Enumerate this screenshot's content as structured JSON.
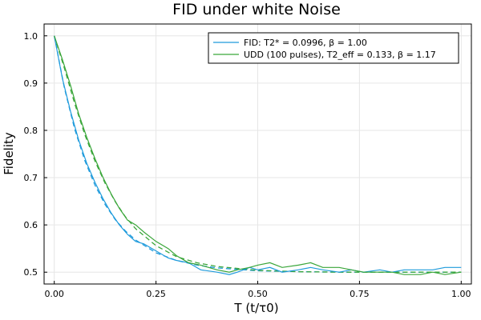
{
  "chart_data": {
    "type": "line",
    "title": "FID under white Noise",
    "xlabel": "T (t/τ0)",
    "ylabel": "Fidelity",
    "xlim": [
      -0.025,
      1.025
    ],
    "ylim": [
      0.475,
      1.025
    ],
    "xticks": [
      0.0,
      0.25,
      0.5,
      0.75,
      1.0
    ],
    "xtick_labels": [
      "0.00",
      "0.25",
      "0.50",
      "0.75",
      "1.00"
    ],
    "yticks": [
      0.5,
      0.6,
      0.7,
      0.8,
      0.9,
      1.0
    ],
    "ytick_labels": [
      "0.5",
      "0.6",
      "0.7",
      "0.8",
      "0.9",
      "1.0"
    ],
    "grid": true,
    "legend_position": "top-right",
    "series": [
      {
        "name": "FID: T2* = 0.0996, β = 1.00",
        "color": "#1f9bdc",
        "style": "solid",
        "x": [
          0.0,
          0.02,
          0.04,
          0.06,
          0.08,
          0.1,
          0.12,
          0.14,
          0.16,
          0.18,
          0.2,
          0.22,
          0.25,
          0.28,
          0.3,
          0.33,
          0.36,
          0.4,
          0.43,
          0.45,
          0.48,
          0.5,
          0.53,
          0.56,
          0.6,
          0.63,
          0.66,
          0.7,
          0.73,
          0.76,
          0.8,
          0.83,
          0.86,
          0.9,
          0.93,
          0.96,
          1.0
        ],
        "y": [
          1.0,
          0.91,
          0.84,
          0.78,
          0.73,
          0.69,
          0.655,
          0.625,
          0.6,
          0.58,
          0.565,
          0.56,
          0.545,
          0.53,
          0.525,
          0.52,
          0.505,
          0.5,
          0.495,
          0.5,
          0.51,
          0.505,
          0.51,
          0.5,
          0.505,
          0.51,
          0.505,
          0.5,
          0.505,
          0.5,
          0.505,
          0.5,
          0.505,
          0.505,
          0.505,
          0.51,
          0.51
        ]
      },
      {
        "name": "UDD (100 pulses), T2_eff = 0.133, β = 1.17",
        "color": "#3aa63a",
        "style": "solid",
        "x": [
          0.0,
          0.02,
          0.04,
          0.06,
          0.08,
          0.1,
          0.12,
          0.14,
          0.16,
          0.18,
          0.2,
          0.22,
          0.25,
          0.28,
          0.3,
          0.33,
          0.36,
          0.4,
          0.43,
          0.45,
          0.48,
          0.5,
          0.53,
          0.56,
          0.6,
          0.63,
          0.66,
          0.7,
          0.73,
          0.76,
          0.8,
          0.83,
          0.86,
          0.9,
          0.93,
          0.96,
          1.0
        ],
        "y": [
          1.0,
          0.95,
          0.895,
          0.835,
          0.785,
          0.74,
          0.7,
          0.665,
          0.635,
          0.61,
          0.6,
          0.585,
          0.565,
          0.55,
          0.535,
          0.52,
          0.515,
          0.505,
          0.5,
          0.505,
          0.51,
          0.515,
          0.52,
          0.51,
          0.515,
          0.52,
          0.51,
          0.51,
          0.505,
          0.5,
          0.5,
          0.5,
          0.495,
          0.495,
          0.5,
          0.495,
          0.5
        ]
      }
    ],
    "fits": [
      {
        "color": "#1f9bdc",
        "style": "dashed",
        "x": [
          0.0,
          0.025,
          0.05,
          0.075,
          0.1,
          0.125,
          0.15,
          0.175,
          0.2,
          0.25,
          0.3,
          0.35,
          0.4,
          0.5,
          0.6,
          0.7,
          0.8,
          0.9,
          1.0
        ],
        "y": [
          1.0,
          0.889,
          0.803,
          0.736,
          0.684,
          0.643,
          0.611,
          0.587,
          0.568,
          0.541,
          0.525,
          0.515,
          0.509,
          0.503,
          0.501,
          0.5,
          0.5,
          0.5,
          0.5
        ]
      },
      {
        "color": "#3aa63a",
        "style": "dashed",
        "x": [
          0.0,
          0.025,
          0.05,
          0.075,
          0.1,
          0.125,
          0.15,
          0.175,
          0.2,
          0.25,
          0.3,
          0.35,
          0.4,
          0.5,
          0.6,
          0.7,
          0.8,
          0.9,
          1.0
        ],
        "y": [
          1.0,
          0.931,
          0.857,
          0.791,
          0.735,
          0.688,
          0.649,
          0.617,
          0.592,
          0.556,
          0.533,
          0.52,
          0.512,
          0.504,
          0.501,
          0.5,
          0.5,
          0.5,
          0.5
        ]
      }
    ]
  }
}
